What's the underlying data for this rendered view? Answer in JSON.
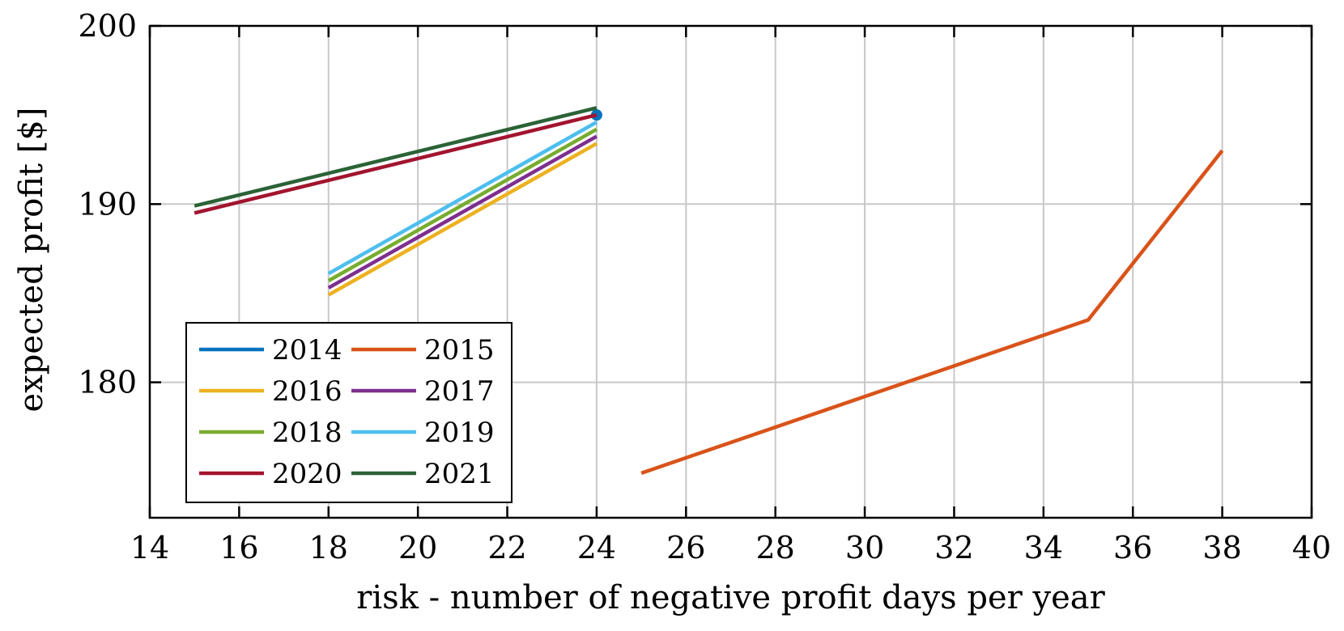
{
  "chart_data": {
    "type": "line",
    "title": "",
    "xlabel": "risk - number of negative profit days per year",
    "ylabel": "expected profit [$]",
    "xlim": [
      14,
      40
    ],
    "ylim": [
      172.4,
      200
    ],
    "xticks": [
      14,
      16,
      18,
      20,
      22,
      24,
      26,
      28,
      30,
      32,
      34,
      36,
      38,
      40
    ],
    "yticks": [
      180,
      190,
      200
    ],
    "grid": true,
    "legend_position": "lower-left",
    "legend_columns": 2,
    "series": [
      {
        "name": "2014",
        "color": "#0072BD",
        "marker": "circle",
        "points": [
          [
            24,
            195
          ]
        ]
      },
      {
        "name": "2015",
        "color": "#D95319",
        "marker": "none",
        "points": [
          [
            25,
            174.9
          ],
          [
            35,
            183.5
          ],
          [
            38,
            193
          ]
        ]
      },
      {
        "name": "2016",
        "color": "#EDB120",
        "marker": "none",
        "points": [
          [
            18,
            184.9
          ],
          [
            24,
            193.4
          ]
        ]
      },
      {
        "name": "2017",
        "color": "#7E2F8E",
        "marker": "none",
        "points": [
          [
            18,
            185.3
          ],
          [
            24,
            193.8
          ]
        ]
      },
      {
        "name": "2018",
        "color": "#77AC30",
        "marker": "none",
        "points": [
          [
            18,
            185.7
          ],
          [
            24,
            194.2
          ]
        ]
      },
      {
        "name": "2019",
        "color": "#4DBEEE",
        "marker": "none",
        "points": [
          [
            18,
            186.1
          ],
          [
            24,
            194.6
          ]
        ]
      },
      {
        "name": "2020",
        "color": "#A2142F",
        "marker": "none",
        "points": [
          [
            15,
            189.5
          ],
          [
            24,
            195
          ]
        ]
      },
      {
        "name": "2021",
        "color": "#2B6236",
        "marker": "none",
        "points": [
          [
            15,
            189.9
          ],
          [
            24,
            195.4
          ]
        ]
      }
    ]
  }
}
